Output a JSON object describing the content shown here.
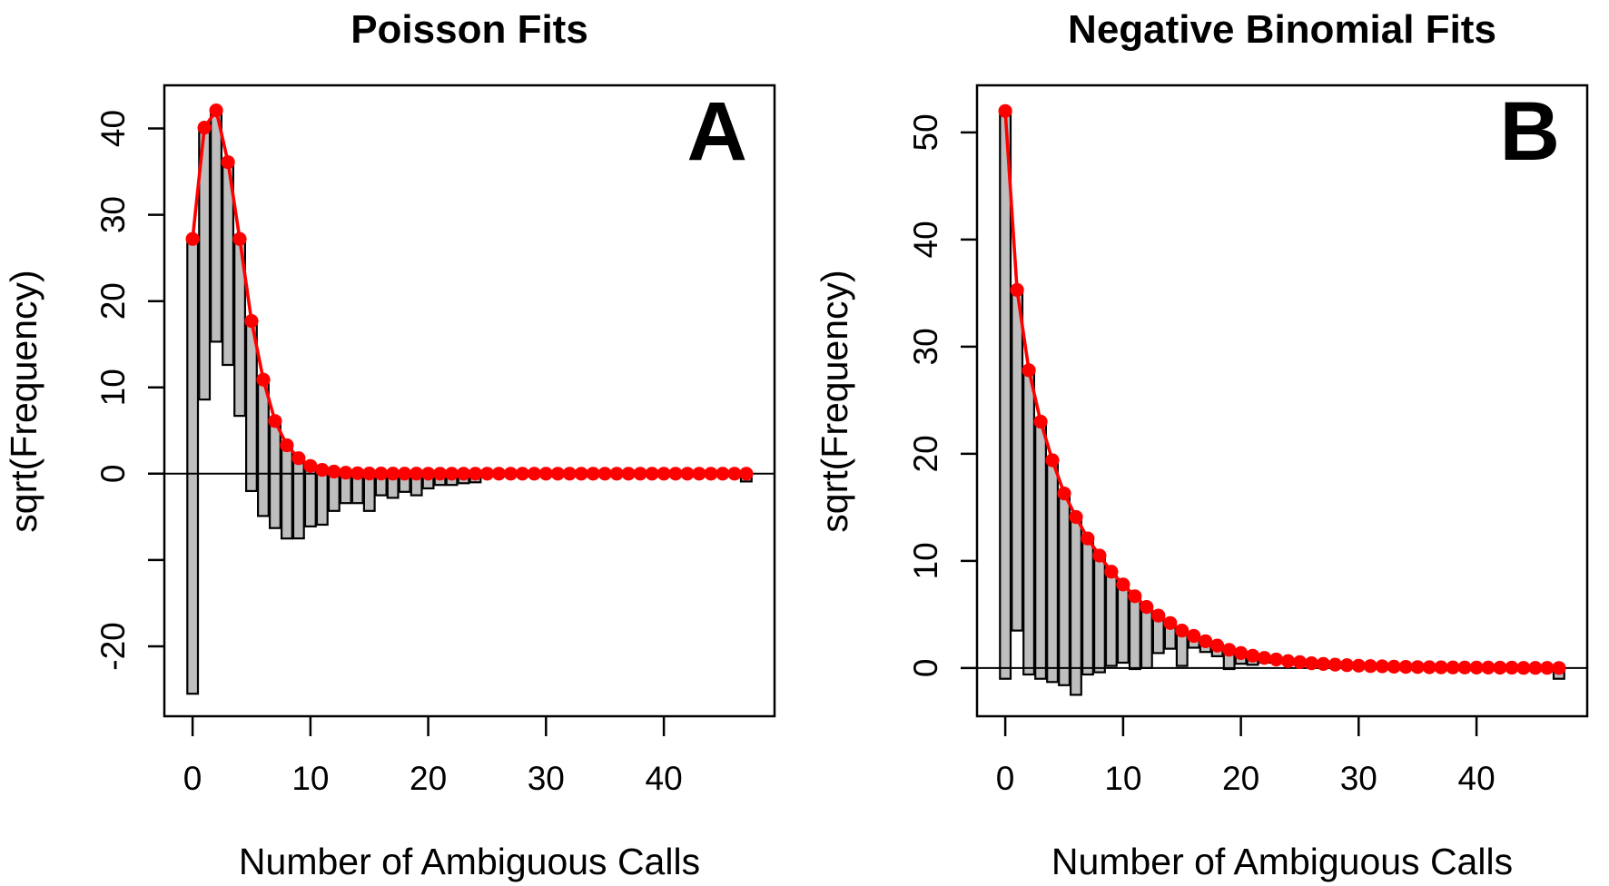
{
  "background": "#ffffff",
  "colors": {
    "fit_line": "#FF0000",
    "fit_point": "#FF0000",
    "bar_fill": "#BEBEBE",
    "bar_stroke": "#000000",
    "axis": "#000000",
    "text": "#000000"
  },
  "chart_data": [
    {
      "type": "bar",
      "overlay": "line+points",
      "subtype": "hanging-rootogram",
      "panel_label": "A",
      "title": "Poisson Fits",
      "xlabel": "Number of Ambiguous Calls",
      "ylabel": "sqrt(Frequency)",
      "xlim": [
        -2.4,
        49.4
      ],
      "ylim": [
        -28.1,
        45.0
      ],
      "x_ticks": [
        0,
        10,
        20,
        30,
        40
      ],
      "y_ticks": {
        "values": [
          40,
          30,
          20,
          10,
          0,
          -10,
          -20
        ],
        "labels": [
          "40",
          "30",
          "20",
          "10",
          "0",
          "",
          "-20"
        ]
      },
      "zero_line": 0,
      "x": [
        0,
        1,
        2,
        3,
        4,
        5,
        6,
        7,
        8,
        9,
        10,
        11,
        12,
        13,
        14,
        15,
        16,
        17,
        18,
        19,
        20,
        21,
        22,
        23,
        24,
        25,
        26,
        27,
        28,
        29,
        30,
        31,
        32,
        33,
        34,
        35,
        36,
        37,
        38,
        39,
        40,
        41,
        42,
        43,
        44,
        45,
        46,
        47
      ],
      "fitted": [
        27.2,
        40.1,
        42.1,
        36.1,
        27.2,
        17.7,
        10.9,
        6.1,
        3.3,
        1.8,
        0.9,
        0.45,
        0.25,
        0.12,
        0.06,
        0.03,
        0.02,
        0.01,
        0.01,
        0.01,
        0,
        0,
        0,
        0,
        0,
        0,
        0,
        0,
        0,
        0,
        0,
        0,
        0,
        0,
        0,
        0,
        0,
        0,
        0,
        0,
        0,
        0,
        0,
        0,
        0,
        0,
        0,
        0
      ],
      "bar_bottoms": [
        -25.5,
        8.6,
        15.3,
        12.6,
        6.7,
        -2.0,
        -4.9,
        -6.3,
        -7.5,
        -7.5,
        -6.1,
        -5.9,
        -4.3,
        -3.4,
        -3.4,
        -4.3,
        -2.5,
        -2.8,
        -2.1,
        -2.5,
        -1.7,
        -1.3,
        -1.3,
        -1.1,
        -1.0,
        0,
        0,
        0,
        0,
        0,
        0,
        0,
        0,
        0,
        0,
        0,
        0,
        0,
        0,
        0,
        0,
        0,
        0,
        0,
        0,
        0,
        0,
        -0.9
      ]
    },
    {
      "type": "bar",
      "overlay": "line+points",
      "subtype": "hanging-rootogram",
      "panel_label": "B",
      "title": "Negative Binomial Fits",
      "xlabel": "Number of Ambiguous Calls",
      "ylabel": "sqrt(Frequency)",
      "xlim": [
        -2.4,
        49.4
      ],
      "ylim": [
        -4.5,
        54.4
      ],
      "x_ticks": [
        0,
        10,
        20,
        30,
        40
      ],
      "y_ticks": {
        "values": [
          50,
          40,
          30,
          20,
          10,
          0
        ],
        "labels": [
          "50",
          "40",
          "30",
          "20",
          "10",
          "0"
        ]
      },
      "zero_line": 0,
      "x": [
        0,
        1,
        2,
        3,
        4,
        5,
        6,
        7,
        8,
        9,
        10,
        11,
        12,
        13,
        14,
        15,
        16,
        17,
        18,
        19,
        20,
        21,
        22,
        23,
        24,
        25,
        26,
        27,
        28,
        29,
        30,
        31,
        32,
        33,
        34,
        35,
        36,
        37,
        38,
        39,
        40,
        41,
        42,
        43,
        44,
        45,
        46,
        47
      ],
      "fitted": [
        52.0,
        35.3,
        27.8,
        23.0,
        19.4,
        16.3,
        14.1,
        12.1,
        10.5,
        9.0,
        7.8,
        6.7,
        5.7,
        4.9,
        4.2,
        3.5,
        3.0,
        2.5,
        2.1,
        1.7,
        1.4,
        1.15,
        0.95,
        0.8,
        0.65,
        0.55,
        0.45,
        0.38,
        0.32,
        0.27,
        0.22,
        0.19,
        0.16,
        0.13,
        0.11,
        0.09,
        0.08,
        0.07,
        0.06,
        0.05,
        0.04,
        0.04,
        0.03,
        0.03,
        0.02,
        0.02,
        0.02,
        0.01
      ],
      "bar_bottoms": [
        -1.0,
        3.5,
        -0.6,
        -1.0,
        -1.3,
        -1.6,
        -2.5,
        -0.6,
        -0.4,
        0.2,
        0.5,
        -0.1,
        0.0,
        1.4,
        1.8,
        0.2,
        1.9,
        1.5,
        1.1,
        -0.1,
        0.4,
        0.3,
        0.5,
        0.5,
        0.4,
        0.3,
        0.25,
        0.38,
        0.32,
        0.27,
        0.22,
        0.19,
        0.16,
        0.13,
        0.11,
        0.09,
        0.08,
        0.07,
        0.06,
        0.05,
        0.04,
        0.04,
        0.03,
        0.03,
        0.02,
        0.02,
        0.02,
        -1.0
      ]
    }
  ]
}
